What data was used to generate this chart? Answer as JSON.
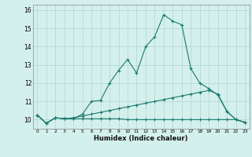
{
  "x": [
    0,
    1,
    2,
    3,
    4,
    5,
    6,
    7,
    8,
    9,
    10,
    11,
    12,
    13,
    14,
    15,
    16,
    17,
    18,
    19,
    20,
    21,
    22,
    23
  ],
  "line1": [
    10.25,
    9.8,
    10.1,
    10.05,
    10.05,
    10.3,
    11.0,
    11.05,
    12.0,
    12.7,
    13.3,
    12.55,
    14.0,
    14.55,
    15.75,
    15.4,
    15.2,
    12.8,
    12.0,
    11.7,
    11.35,
    10.45,
    10.0,
    9.85
  ],
  "line2": [
    10.25,
    9.8,
    10.1,
    10.05,
    10.1,
    10.2,
    10.3,
    10.4,
    10.5,
    10.6,
    10.7,
    10.8,
    10.9,
    11.0,
    11.1,
    11.2,
    11.3,
    11.4,
    11.5,
    11.6,
    11.4,
    10.45,
    10.0,
    9.85
  ],
  "line3": [
    10.25,
    9.8,
    10.1,
    10.05,
    10.05,
    10.05,
    10.05,
    10.05,
    10.05,
    10.05,
    10.0,
    10.0,
    10.0,
    10.0,
    10.0,
    10.0,
    10.0,
    10.0,
    10.0,
    10.0,
    10.0,
    10.0,
    10.0,
    9.85
  ],
  "line_color": "#1a7a6e",
  "bg_color": "#d4f0ec",
  "grid_color": "#b8d8d4",
  "xlabel": "Humidex (Indice chaleur)",
  "ylim": [
    9.5,
    16.3
  ],
  "xlim": [
    -0.5,
    23.5
  ],
  "yticks": [
    10,
    11,
    12,
    13,
    14,
    15,
    16
  ],
  "xticks": [
    0,
    1,
    2,
    3,
    4,
    5,
    6,
    7,
    8,
    9,
    10,
    11,
    12,
    13,
    14,
    15,
    16,
    17,
    18,
    19,
    20,
    21,
    22,
    23
  ]
}
